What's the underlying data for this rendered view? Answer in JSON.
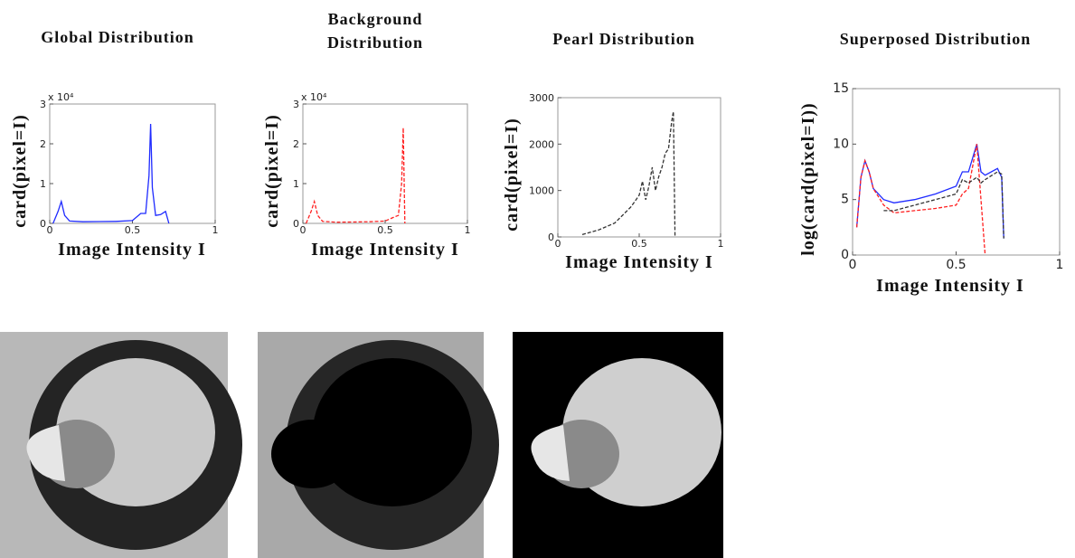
{
  "chart_data": [
    {
      "type": "line",
      "title": "Global Distribution",
      "xlabel": "Image Intensity I",
      "ylabel": "card(pixel=I)",
      "scale_note": "x 10⁴",
      "x": [
        0.02,
        0.05,
        0.07,
        0.09,
        0.12,
        0.2,
        0.3,
        0.4,
        0.5,
        0.55,
        0.58,
        0.6,
        0.61,
        0.62,
        0.64,
        0.67,
        0.7,
        0.72
      ],
      "series": [
        {
          "name": "global",
          "color": "#1f2bff",
          "dash": false,
          "values": [
            0,
            3000,
            5500,
            2000,
            600,
            400,
            450,
            500,
            700,
            2500,
            2500,
            12000,
            25000,
            9000,
            2000,
            2200,
            3000,
            0
          ]
        }
      ],
      "xlim": [
        0,
        1
      ],
      "ylim": [
        0,
        30000
      ],
      "xticks": [
        0,
        0.5,
        1
      ],
      "yticks": [
        0,
        {
          "value": 10000,
          "label": "1"
        },
        {
          "value": 20000,
          "label": "2"
        },
        {
          "value": 30000,
          "label": "3"
        }
      ]
    },
    {
      "type": "line",
      "title": "Background Distribution",
      "xlabel": "Image Intensity I",
      "ylabel": "card(pixel=I)",
      "scale_note": "x 10⁴",
      "x": [
        0.02,
        0.05,
        0.07,
        0.09,
        0.12,
        0.2,
        0.3,
        0.4,
        0.5,
        0.55,
        0.58,
        0.6,
        0.61,
        0.62
      ],
      "series": [
        {
          "name": "background",
          "color": "#ff2020",
          "dash": true,
          "values": [
            0,
            3000,
            5500,
            2000,
            500,
            300,
            350,
            400,
            600,
            1500,
            2000,
            10000,
            24000,
            0
          ]
        }
      ],
      "xlim": [
        0,
        1
      ],
      "ylim": [
        0,
        30000
      ],
      "xticks": [
        0,
        0.5,
        1
      ],
      "yticks": [
        0,
        {
          "value": 10000,
          "label": "1"
        },
        {
          "value": 20000,
          "label": "2"
        },
        {
          "value": 30000,
          "label": "3"
        }
      ]
    },
    {
      "type": "line",
      "title": "Pearl Distribution",
      "xlabel": "Image Intensity I",
      "ylabel": "card(pixel=I)",
      "x": [
        0.15,
        0.25,
        0.35,
        0.45,
        0.5,
        0.52,
        0.54,
        0.56,
        0.58,
        0.6,
        0.62,
        0.64,
        0.66,
        0.68,
        0.7,
        0.71,
        0.72
      ],
      "series": [
        {
          "name": "pearl",
          "color": "#333333",
          "dash": true,
          "values": [
            50,
            150,
            300,
            650,
            900,
            1200,
            800,
            1100,
            1500,
            1000,
            1300,
            1500,
            1800,
            1900,
            2500,
            2700,
            0
          ]
        }
      ],
      "xlim": [
        0,
        1
      ],
      "ylim": [
        0,
        3000
      ],
      "xticks": [
        0,
        0.5,
        1
      ],
      "yticks": [
        0,
        1000,
        2000,
        3000
      ]
    },
    {
      "type": "line",
      "title": "Superposed Distribution",
      "xlabel": "Image Intensity I",
      "ylabel": "log(card(pixel=I))",
      "x": [
        0.02,
        0.04,
        0.06,
        0.08,
        0.1,
        0.15,
        0.2,
        0.3,
        0.4,
        0.5,
        0.53,
        0.56,
        0.6,
        0.62,
        0.64,
        0.7,
        0.72,
        0.73
      ],
      "series": [
        {
          "name": "global",
          "color": "#1f2bff",
          "dash": false,
          "values": [
            2.5,
            7,
            8.5,
            7.5,
            6,
            5,
            4.7,
            5,
            5.5,
            6.2,
            7.5,
            7.5,
            10,
            7.5,
            7.2,
            7.8,
            7,
            1.5
          ]
        },
        {
          "name": "background",
          "color": "#ff2020",
          "dash": true,
          "values": [
            2.5,
            7,
            8.5,
            7.5,
            6,
            4.5,
            3.8,
            4,
            4.2,
            4.5,
            5.5,
            6,
            10,
            5,
            0,
            null,
            null,
            null
          ]
        },
        {
          "name": "pearl",
          "color": "#333333",
          "dash": true,
          "values": [
            null,
            null,
            null,
            null,
            null,
            4,
            4,
            4.5,
            5,
            5.5,
            6.8,
            6.5,
            7,
            6.5,
            6.8,
            7.5,
            7.3,
            1.5
          ]
        }
      ],
      "xlim": [
        0,
        1
      ],
      "ylim": [
        0,
        15
      ],
      "xticks": [
        0,
        0.5,
        1
      ],
      "yticks": [
        0,
        5,
        10,
        15
      ]
    }
  ]
}
